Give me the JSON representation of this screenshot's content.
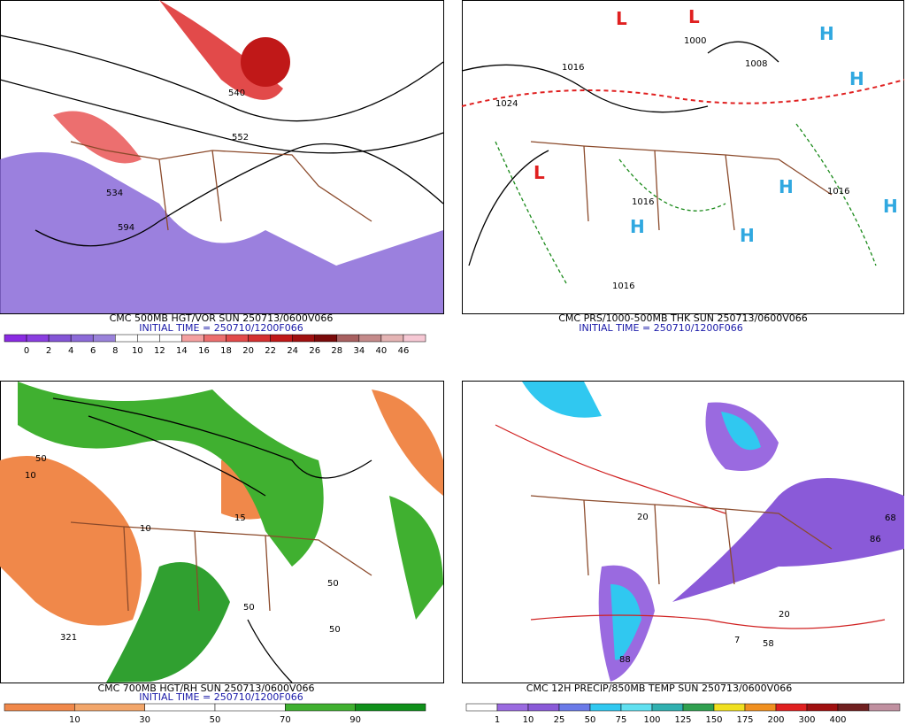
{
  "panels": [
    {
      "caption": "CMC 500MB HGT/VOR SUN 250713/0600V066",
      "initial_time": "INITIAL TIME = 250710/1200F066",
      "map_labels": [
        "540",
        "552",
        "534",
        "594"
      ],
      "colorbar": {
        "labels": [
          0,
          2,
          4,
          6,
          8,
          10,
          12,
          14,
          16,
          18,
          20,
          22,
          24,
          26,
          28,
          34,
          40,
          46
        ],
        "colors": [
          "#8a2be2",
          "#8a3ee0",
          "#8455d6",
          "#8c6ad8",
          "#9a82da",
          "#ffffff",
          "#ffffff",
          "#ffffff",
          "#f4a0a0",
          "#ec6f6f",
          "#e24a4a",
          "#d43030",
          "#c01818",
          "#a01010",
          "#7a0a0a",
          "#a86060",
          "#c48a8a",
          "#e4b4b4",
          "#f6c8d4"
        ]
      }
    },
    {
      "caption": "CMC PRS/1000-500MB THK SUN 250713/0600V066",
      "initial_time": "INITIAL TIME = 250710/1200F066",
      "map_labels": [
        "1016",
        "1024",
        "1000",
        "1008",
        "1016",
        "1016",
        "1016",
        "L",
        "L",
        "L",
        "H",
        "H",
        "H",
        "H",
        "H",
        "H"
      ]
    },
    {
      "caption": "CMC 700MB HGT/RH SUN 250713/0600V066",
      "initial_time": "INITIAL TIME = 250710/1200F066",
      "map_labels": [
        "10",
        "50",
        "321",
        "10",
        "50",
        "50",
        "15",
        "50"
      ],
      "colorbar": {
        "labels": [
          10,
          30,
          50,
          70,
          90
        ],
        "colors": [
          "#f0884a",
          "#f2a66a",
          "#ffffff",
          "#ffffff",
          "#40b030",
          "#10901a"
        ]
      }
    },
    {
      "caption": "CMC 12H PRECIP/850MB TEMP SUN 250713/0600V066",
      "map_labels": [
        "68",
        "86",
        "58",
        "88",
        "7",
        "20",
        "20"
      ],
      "colorbar": {
        "labels": [
          1,
          10,
          25,
          50,
          75,
          100,
          125,
          150,
          175,
          200,
          300,
          400
        ],
        "colors": [
          "#ffffff",
          "#9a6ae0",
          "#8a5ad8",
          "#6a7ae8",
          "#30c8f0",
          "#60e0f0",
          "#30b0b0",
          "#30a050",
          "#f0e020",
          "#f09020",
          "#e02020",
          "#a01010",
          "#702020",
          "#c090a0"
        ]
      }
    }
  ]
}
